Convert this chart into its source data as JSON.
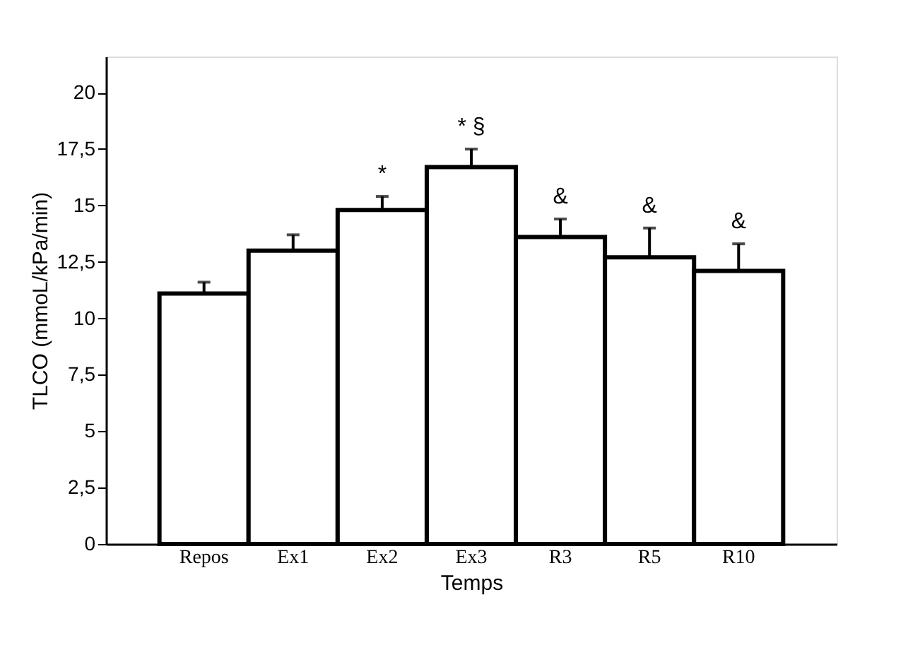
{
  "chart_data": {
    "type": "bar",
    "xlabel": "Temps",
    "ylabel": "TLCO (mmoL/kPa/min)",
    "categories": [
      "Repos",
      "Ex1",
      "Ex2",
      "Ex3",
      "R3",
      "R5",
      "R10"
    ],
    "series": [
      {
        "color": "#ffffff",
        "values": [
          11.1,
          13.0,
          14.8,
          16.7,
          13.6,
          12.7,
          12.1
        ],
        "errors": [
          [
            11.1,
            11.6
          ],
          [
            13.0,
            13.7
          ],
          [
            14.8,
            15.4
          ],
          [
            16.7,
            17.5
          ],
          [
            13.6,
            14.4
          ],
          [
            12.7,
            14.0
          ],
          [
            12.1,
            13.3
          ]
        ]
      }
    ],
    "ylim": [
      0,
      21.6
    ],
    "yticks": [
      0,
      {
        "value": 2.5,
        "label": "2,5"
      },
      5,
      {
        "value": 7.5,
        "label": "7,5"
      },
      10,
      {
        "value": 12.5,
        "label": "12,5"
      },
      15,
      {
        "value": 17.5,
        "label": "17,5"
      },
      20
    ],
    "annotations": [
      {
        "text": "*",
        "x": "Ex2",
        "y": 15.4
      },
      {
        "text": "* §",
        "x": "Ex3",
        "y": 17.5
      },
      {
        "text": "&",
        "x": "R3",
        "y": 14.4
      },
      {
        "text": "&",
        "x": "R5",
        "y": 14.0
      },
      {
        "text": "&",
        "x": "R10",
        "y": 13.3
      }
    ],
    "grid": false
  }
}
